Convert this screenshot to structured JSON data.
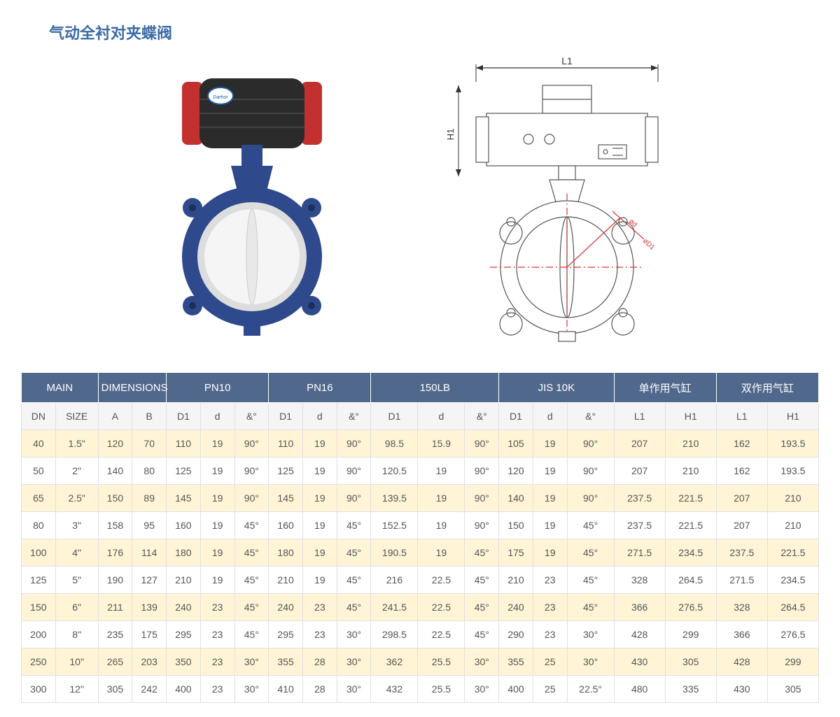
{
  "title": "气动全衬对夹蝶阀",
  "drawing_labels": {
    "L1": "L1",
    "H1": "H1"
  },
  "table": {
    "groups": [
      {
        "label": "MAIN",
        "span": 2
      },
      {
        "label": "DIMENSIONS",
        "span": 2
      },
      {
        "label": "PN10",
        "span": 3
      },
      {
        "label": "PN16",
        "span": 3
      },
      {
        "label": "150LB",
        "span": 3
      },
      {
        "label": "JIS 10K",
        "span": 3
      },
      {
        "label": "单作用气缸",
        "span": 2
      },
      {
        "label": "双作用气缸",
        "span": 2
      }
    ],
    "columns": [
      "DN",
      "SIZE",
      "A",
      "B",
      "D1",
      "d",
      "&°",
      "D1",
      "d",
      "&°",
      "D1",
      "d",
      "&°",
      "D1",
      "d",
      "&°",
      "L1",
      "H1",
      "L1",
      "H1"
    ],
    "rows": [
      [
        "40",
        "1.5\"",
        "120",
        "70",
        "110",
        "19",
        "90°",
        "110",
        "19",
        "90°",
        "98.5",
        "15.9",
        "90°",
        "105",
        "19",
        "90°",
        "207",
        "210",
        "162",
        "193.5"
      ],
      [
        "50",
        "2\"",
        "140",
        "80",
        "125",
        "19",
        "90°",
        "125",
        "19",
        "90°",
        "120.5",
        "19",
        "90°",
        "120",
        "19",
        "90°",
        "207",
        "210",
        "162",
        "193.5"
      ],
      [
        "65",
        "2.5\"",
        "150",
        "89",
        "145",
        "19",
        "90°",
        "145",
        "19",
        "90°",
        "139.5",
        "19",
        "90°",
        "140",
        "19",
        "90°",
        "237.5",
        "221.5",
        "207",
        "210"
      ],
      [
        "80",
        "3\"",
        "158",
        "95",
        "160",
        "19",
        "45°",
        "160",
        "19",
        "45°",
        "152.5",
        "19",
        "90°",
        "150",
        "19",
        "45°",
        "237.5",
        "221.5",
        "207",
        "210"
      ],
      [
        "100",
        "4\"",
        "176",
        "114",
        "180",
        "19",
        "45°",
        "180",
        "19",
        "45°",
        "190.5",
        "19",
        "45°",
        "175",
        "19",
        "45°",
        "271.5",
        "234.5",
        "237.5",
        "221.5"
      ],
      [
        "125",
        "5\"",
        "190",
        "127",
        "210",
        "19",
        "45°",
        "210",
        "19",
        "45°",
        "216",
        "22.5",
        "45°",
        "210",
        "23",
        "45°",
        "328",
        "264.5",
        "271.5",
        "234.5"
      ],
      [
        "150",
        "6\"",
        "211",
        "139",
        "240",
        "23",
        "45°",
        "240",
        "23",
        "45°",
        "241.5",
        "22.5",
        "45°",
        "240",
        "23",
        "45°",
        "366",
        "276.5",
        "328",
        "264.5"
      ],
      [
        "200",
        "8\"",
        "235",
        "175",
        "295",
        "23",
        "45°",
        "295",
        "23",
        "30°",
        "298.5",
        "22.5",
        "45°",
        "290",
        "23",
        "30°",
        "428",
        "299",
        "366",
        "276.5"
      ],
      [
        "250",
        "10\"",
        "265",
        "203",
        "350",
        "23",
        "30°",
        "355",
        "28",
        "30°",
        "362",
        "25.5",
        "30°",
        "355",
        "25",
        "30°",
        "430",
        "305",
        "428",
        "299"
      ],
      [
        "300",
        "12\"",
        "305",
        "242",
        "400",
        "23",
        "30°",
        "410",
        "28",
        "30°",
        "432",
        "25.5",
        "30°",
        "400",
        "25",
        "22.5°",
        "480",
        "335",
        "430",
        "305"
      ]
    ],
    "alt_row_color": "#fff5d6",
    "header_bg": "#51688d",
    "header_fg": "#ffffff"
  }
}
